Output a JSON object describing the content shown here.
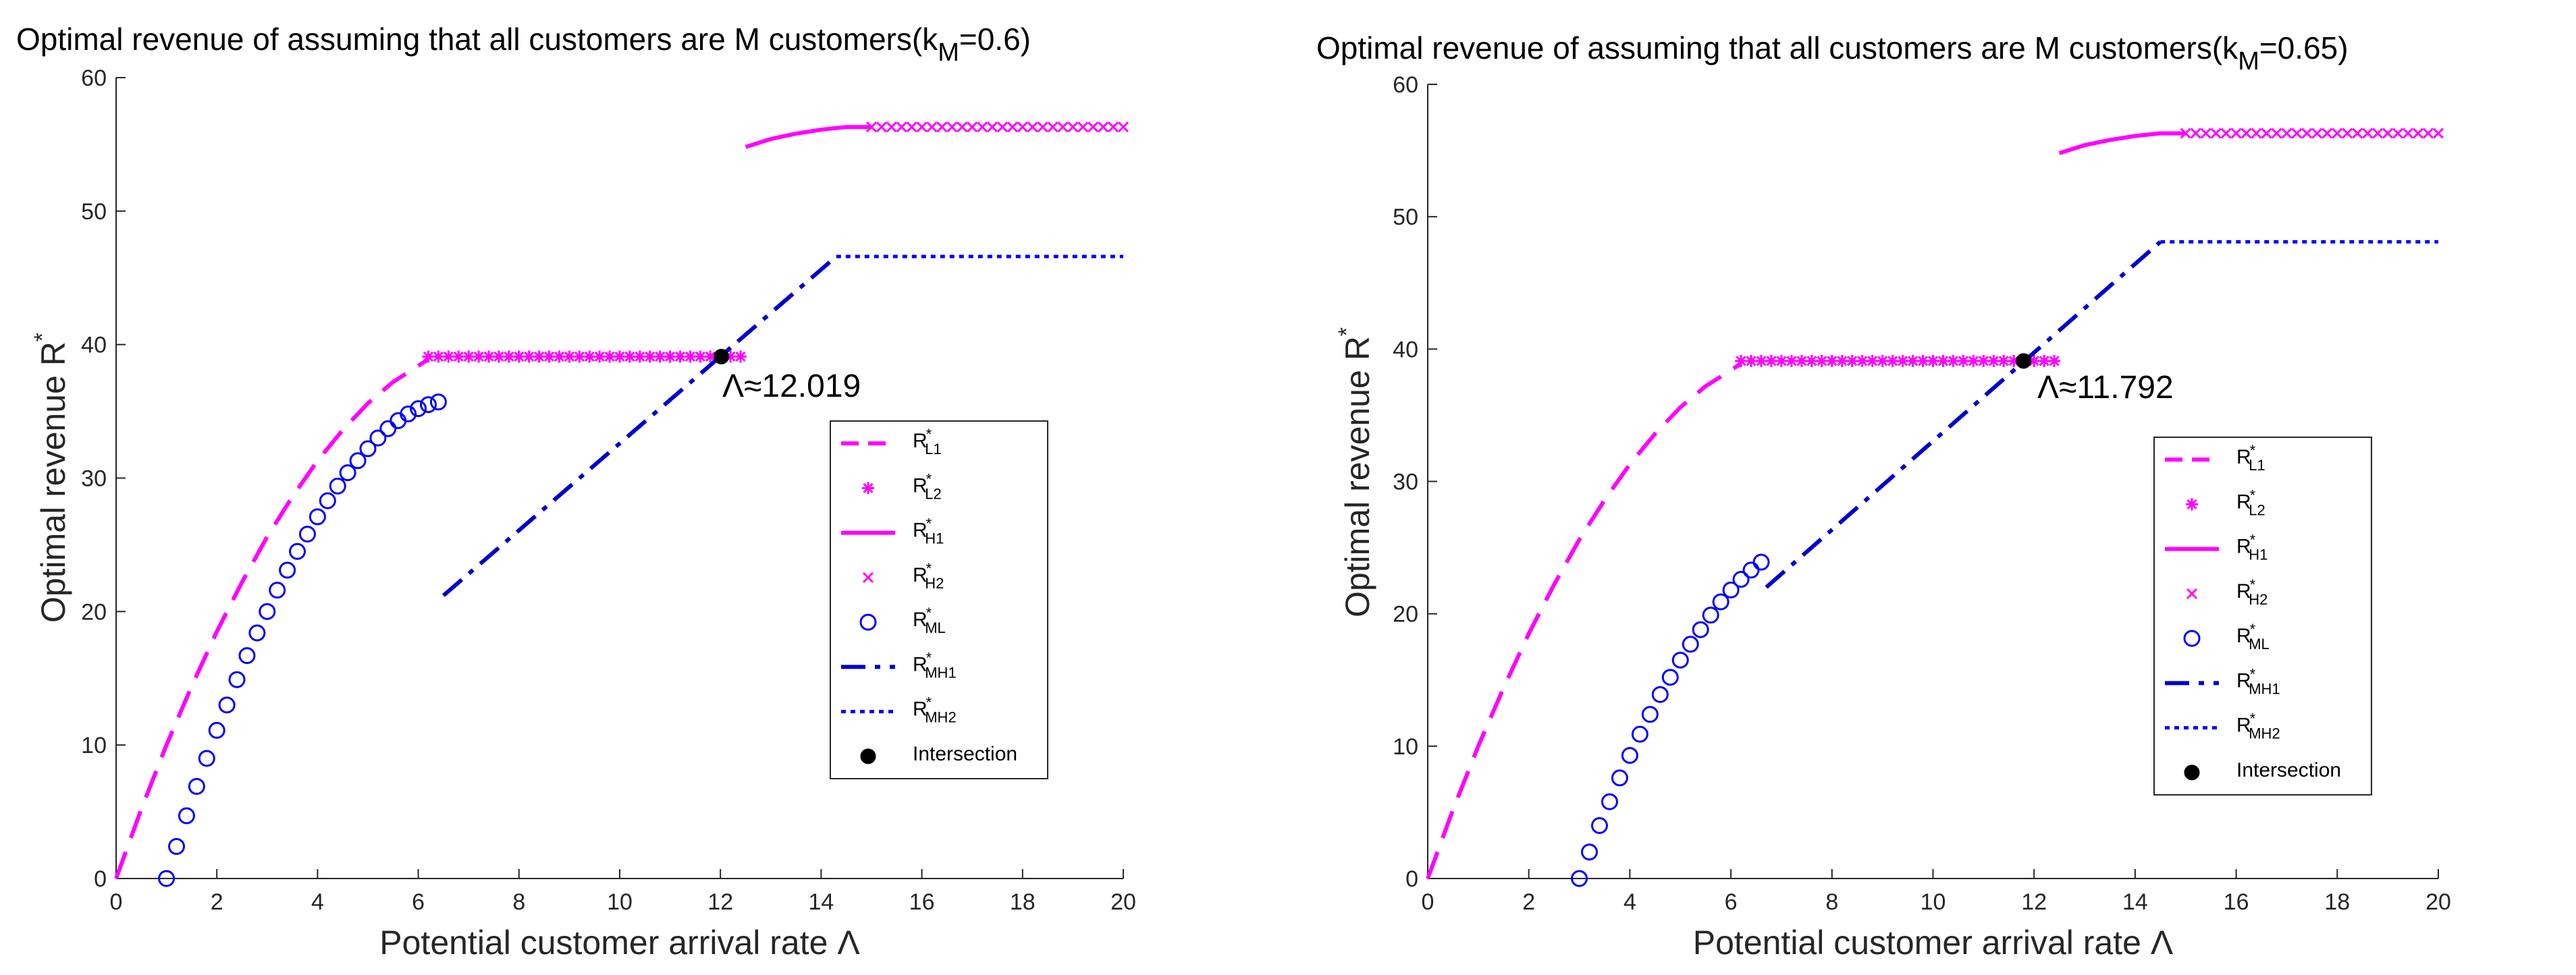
{
  "chart_data": [
    {
      "type": "line",
      "title": "Optimal revenue of assuming that all customers are M customers(k",
      "title_subscript": "M",
      "title_suffix": "=0.6)",
      "xlabel": "Potential customer arrival rate Λ",
      "ylabel": "Optimal revenue R",
      "ylabel_sup": "*",
      "xlim": [
        0,
        20
      ],
      "ylim": [
        0,
        60
      ],
      "xticks": [
        "0",
        "2",
        "4",
        "6",
        "8",
        "10",
        "12",
        "14",
        "16",
        "18",
        "20"
      ],
      "yticks": [
        "0",
        "10",
        "20",
        "30",
        "40",
        "50",
        "60"
      ],
      "annotation": "Λ≈12.019",
      "intersection": {
        "x": 12.019,
        "y": 39.1
      },
      "legend_position": "middle-right",
      "series": [
        {
          "name": "R*L1",
          "base": "R",
          "sub": "L1",
          "color": "#ff00ff",
          "style": "dashed",
          "marker": "none",
          "points": [
            [
              0,
              0
            ],
            [
              0.5,
              5.2
            ],
            [
              1,
              10
            ],
            [
              1.5,
              14.4
            ],
            [
              2,
              18.5
            ],
            [
              2.5,
              22.2
            ],
            [
              3,
              25.6
            ],
            [
              3.5,
              28.6
            ],
            [
              4,
              31.3
            ],
            [
              4.5,
              33.6
            ],
            [
              5,
              35.6
            ],
            [
              5.5,
              37.2
            ],
            [
              6,
              38.4
            ],
            [
              6.2,
              38.9
            ]
          ]
        },
        {
          "name": "R*L2",
          "base": "R",
          "sub": "L2",
          "color": "#ff00ff",
          "style": "none",
          "marker": "asterisk",
          "x_range": [
            6.2,
            12.5
          ],
          "x_step": 0.2,
          "y_const": 39.1
        },
        {
          "name": "R*H1",
          "base": "R",
          "sub": "H1",
          "color": "#ff00ff",
          "style": "solid",
          "marker": "none",
          "points": [
            [
              12.5,
              54.8
            ],
            [
              13,
              55.4
            ],
            [
              13.5,
              55.8
            ],
            [
              14,
              56.1
            ],
            [
              14.5,
              56.3
            ],
            [
              15,
              56.3
            ]
          ]
        },
        {
          "name": "R*H2",
          "base": "R",
          "sub": "H2",
          "color": "#ff00ff",
          "style": "none",
          "marker": "x",
          "x_range": [
            15,
            20
          ],
          "x_step": 0.2,
          "y_const": 56.3
        },
        {
          "name": "R*ML",
          "base": "R",
          "sub": "ML",
          "color": "#0000ff",
          "style": "none",
          "marker": "circle",
          "points": [
            [
              1.0,
              0.0
            ],
            [
              1.2,
              2.4
            ],
            [
              1.4,
              4.7
            ],
            [
              1.6,
              6.9
            ],
            [
              1.8,
              9.0
            ],
            [
              2.0,
              11.1
            ],
            [
              2.2,
              13.0
            ],
            [
              2.4,
              14.9
            ],
            [
              2.6,
              16.7
            ],
            [
              2.8,
              18.4
            ],
            [
              3.0,
              20.0
            ],
            [
              3.2,
              21.6
            ],
            [
              3.4,
              23.1
            ],
            [
              3.6,
              24.5
            ],
            [
              3.8,
              25.8
            ],
            [
              4.0,
              27.1
            ],
            [
              4.2,
              28.3
            ],
            [
              4.4,
              29.4
            ],
            [
              4.6,
              30.4
            ],
            [
              4.8,
              31.3
            ],
            [
              5.0,
              32.2
            ],
            [
              5.2,
              33.0
            ],
            [
              5.4,
              33.7
            ],
            [
              5.6,
              34.3
            ],
            [
              5.8,
              34.8
            ],
            [
              6.0,
              35.2
            ],
            [
              6.2,
              35.5
            ],
            [
              6.4,
              35.7
            ]
          ]
        },
        {
          "name": "R*MH1",
          "base": "R",
          "sub": "MH1",
          "color": "#0000cc",
          "style": "dashdot",
          "marker": "none",
          "points": [
            [
              6.5,
              21.2
            ],
            [
              14.3,
              46.6
            ]
          ]
        },
        {
          "name": "R*MH2",
          "base": "R",
          "sub": "MH2",
          "color": "#0000ff",
          "style": "dotted",
          "marker": "none",
          "points": [
            [
              14.3,
              46.6
            ],
            [
              20,
              46.6
            ]
          ]
        },
        {
          "name": "Intersection",
          "label": "Intersection",
          "color": "#000000",
          "style": "none",
          "marker": "dot"
        }
      ]
    },
    {
      "type": "line",
      "title": "Optimal revenue of assuming that all customers are M customers(k",
      "title_subscript": "M",
      "title_suffix": "=0.65)",
      "xlabel": "Potential customer arrival rate Λ",
      "ylabel": "Optimal revenue R",
      "ylabel_sup": "*",
      "xlim": [
        0,
        20
      ],
      "ylim": [
        0,
        60
      ],
      "xticks": [
        "0",
        "2",
        "4",
        "6",
        "8",
        "10",
        "12",
        "14",
        "16",
        "18",
        "20"
      ],
      "yticks": [
        "0",
        "10",
        "20",
        "30",
        "40",
        "50",
        "60"
      ],
      "annotation": "Λ≈11.792",
      "intersection": {
        "x": 11.792,
        "y": 39.1
      },
      "legend_position": "lower-right",
      "series": [
        {
          "name": "R*L1",
          "base": "R",
          "sub": "L1",
          "color": "#ff00ff",
          "style": "dashed",
          "marker": "none",
          "points": [
            [
              0,
              0
            ],
            [
              0.5,
              5.2
            ],
            [
              1,
              10
            ],
            [
              1.5,
              14.4
            ],
            [
              2,
              18.5
            ],
            [
              2.5,
              22.2
            ],
            [
              3,
              25.6
            ],
            [
              3.5,
              28.6
            ],
            [
              4,
              31.3
            ],
            [
              4.5,
              33.6
            ],
            [
              5,
              35.6
            ],
            [
              5.5,
              37.2
            ],
            [
              6,
              38.4
            ],
            [
              6.2,
              38.9
            ]
          ]
        },
        {
          "name": "R*L2",
          "base": "R",
          "sub": "L2",
          "color": "#ff00ff",
          "style": "none",
          "marker": "asterisk",
          "x_range": [
            6.2,
            12.5
          ],
          "x_step": 0.2,
          "y_const": 39.1
        },
        {
          "name": "R*H1",
          "base": "R",
          "sub": "H1",
          "color": "#ff00ff",
          "style": "solid",
          "marker": "none",
          "points": [
            [
              12.5,
              54.8
            ],
            [
              13,
              55.4
            ],
            [
              13.5,
              55.8
            ],
            [
              14,
              56.1
            ],
            [
              14.5,
              56.3
            ],
            [
              15,
              56.3
            ]
          ]
        },
        {
          "name": "R*H2",
          "base": "R",
          "sub": "H2",
          "color": "#ff00ff",
          "style": "none",
          "marker": "x",
          "x_range": [
            15,
            20
          ],
          "x_step": 0.2,
          "y_const": 56.3
        },
        {
          "name": "R*ML",
          "base": "R",
          "sub": "ML",
          "color": "#0000ff",
          "style": "none",
          "marker": "circle",
          "points": [
            [
              3.0,
              0.0
            ],
            [
              3.2,
              2.0
            ],
            [
              3.4,
              4.0
            ],
            [
              3.6,
              5.8
            ],
            [
              3.8,
              7.6
            ],
            [
              4.0,
              9.3
            ],
            [
              4.2,
              10.9
            ],
            [
              4.4,
              12.4
            ],
            [
              4.6,
              13.9
            ],
            [
              4.8,
              15.2
            ],
            [
              5.0,
              16.5
            ],
            [
              5.2,
              17.7
            ],
            [
              5.4,
              18.8
            ],
            [
              5.6,
              19.9
            ],
            [
              5.8,
              20.9
            ],
            [
              6.0,
              21.8
            ],
            [
              6.2,
              22.6
            ],
            [
              6.4,
              23.3
            ],
            [
              6.6,
              23.9
            ]
          ]
        },
        {
          "name": "R*MH1",
          "base": "R",
          "sub": "MH1",
          "color": "#0000cc",
          "style": "dashdot",
          "marker": "none",
          "points": [
            [
              6.7,
              22.0
            ],
            [
              14.5,
              48.1
            ]
          ]
        },
        {
          "name": "R*MH2",
          "base": "R",
          "sub": "MH2",
          "color": "#0000ff",
          "style": "dotted",
          "marker": "none",
          "points": [
            [
              14.5,
              48.1
            ],
            [
              20,
              48.1
            ]
          ]
        },
        {
          "name": "Intersection",
          "label": "Intersection",
          "color": "#000000",
          "style": "none",
          "marker": "dot"
        }
      ]
    }
  ]
}
